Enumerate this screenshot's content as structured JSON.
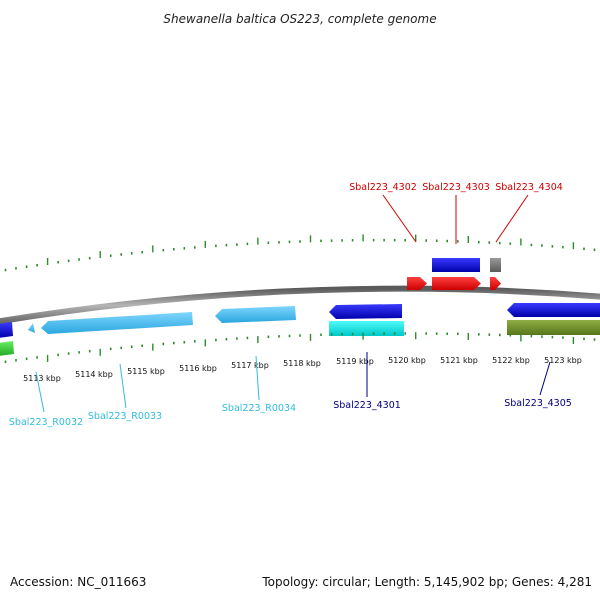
{
  "title": "Shewanella baltica OS223, complete genome",
  "footer": {
    "accession": "Accession: NC_011663",
    "summary": "Topology: circular; Length: 5,145,902 bp; Genes: 4,281"
  },
  "colors": {
    "backbone": "#8c8c8c",
    "tick": "#2e8b2e",
    "label_red": "#cc0000",
    "label_cyan": "#33bbdd",
    "label_navy": "#000080",
    "gene_red": "#ff0000",
    "gene_blue": "#0000dd",
    "gene_gray": "#777777",
    "gene_lightblue": "#33bbee",
    "gene_cyan": "#00e5e5",
    "gene_olive": "#6b8e23",
    "gene_green": "#33cc33"
  },
  "scale_ticks": [
    "5113 kbp",
    "5114 kbp",
    "5115 kbp",
    "5116 kbp",
    "5117 kbp",
    "5118 kbp",
    "5119 kbp",
    "5120 kbp",
    "5121 kbp",
    "5122 kbp",
    "5123 kbp"
  ],
  "gene_labels": [
    {
      "id": "Sbal223_4302",
      "color": "label_red"
    },
    {
      "id": "Sbal223_4303",
      "color": "label_red"
    },
    {
      "id": "Sbal223_4304",
      "color": "label_red"
    },
    {
      "id": "Sbal223_R0032",
      "color": "label_cyan"
    },
    {
      "id": "Sbal223_R0033",
      "color": "label_cyan"
    },
    {
      "id": "Sbal223_R0034",
      "color": "label_cyan"
    },
    {
      "id": "Sbal223_4301",
      "color": "label_navy"
    },
    {
      "id": "Sbal223_4305",
      "color": "label_navy"
    }
  ]
}
